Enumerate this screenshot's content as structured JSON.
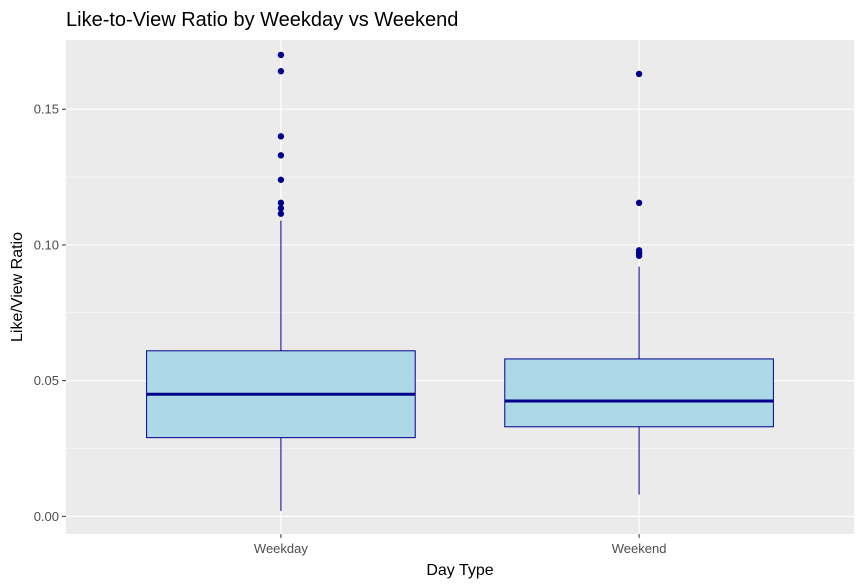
{
  "chart_data": {
    "type": "box",
    "title": "Like-to-View Ratio by Weekday vs Weekend",
    "xlabel": "Day Type",
    "ylabel": "Like/View Ratio",
    "categories": [
      "Weekday",
      "Weekend"
    ],
    "ylim": [
      -0.0065,
      0.1755
    ],
    "y_ticks": [
      0.0,
      0.05,
      0.1,
      0.15
    ],
    "y_tick_labels": [
      "0.00",
      "0.05",
      "0.10",
      "0.15"
    ],
    "grid": true,
    "legend": "none",
    "boxes": [
      {
        "category": "Weekday",
        "whisker_low": 0.002,
        "q1": 0.029,
        "median": 0.045,
        "q3": 0.061,
        "whisker_high": 0.109,
        "outliers": [
          0.17,
          0.164,
          0.14,
          0.133,
          0.124,
          0.1155,
          0.1135,
          0.1115
        ]
      },
      {
        "category": "Weekend",
        "whisker_low": 0.008,
        "q1": 0.033,
        "median": 0.0425,
        "q3": 0.058,
        "whisker_high": 0.092,
        "outliers": [
          0.163,
          0.1155,
          0.098,
          0.097,
          0.096
        ]
      }
    ],
    "colors": {
      "panel_background": "#EBEBEB",
      "grid": "#FFFFFF",
      "box_fill": "#ADD8E6",
      "box_outline": "#00008B",
      "outlier": "#00008B"
    }
  }
}
